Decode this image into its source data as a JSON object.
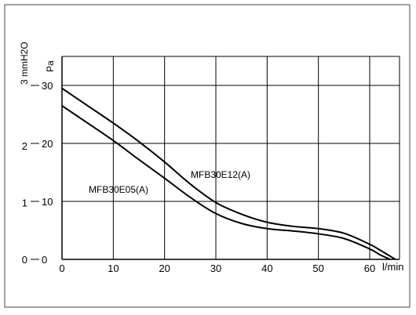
{
  "chart_data": {
    "type": "line",
    "title": "",
    "xlabel": "l/min",
    "ylabel_pa": "Pa",
    "ylabel_mmh2o": "3 mmH2O",
    "xlim": [
      0,
      64
    ],
    "ylim": [
      0,
      35
    ],
    "x_ticks": [
      "0",
      "10",
      "20",
      "30",
      "40",
      "50",
      "60"
    ],
    "y_ticks_pa": [
      "0",
      "10",
      "20",
      "30"
    ],
    "y_ticks_mmh2o": [
      "0",
      "1",
      "2"
    ],
    "grid": true,
    "series": [
      {
        "name": "MFB30E12(A)",
        "x": [
          0,
          5,
          10,
          15,
          20,
          25,
          30,
          35,
          40,
          45,
          50,
          55,
          60,
          62,
          65
        ],
        "y": [
          29.5,
          26.5,
          23.5,
          20.3,
          16.8,
          13.0,
          9.8,
          7.8,
          6.4,
          5.7,
          5.3,
          4.5,
          2.6,
          1.6,
          0
        ]
      },
      {
        "name": "MFB30E05(A)",
        "x": [
          0,
          5,
          10,
          15,
          20,
          25,
          30,
          35,
          40,
          45,
          50,
          55,
          60,
          62,
          64
        ],
        "y": [
          26.5,
          23.5,
          20.5,
          17.2,
          14.0,
          10.7,
          7.9,
          6.2,
          5.3,
          4.9,
          4.4,
          3.6,
          1.8,
          0.8,
          0
        ]
      }
    ]
  }
}
